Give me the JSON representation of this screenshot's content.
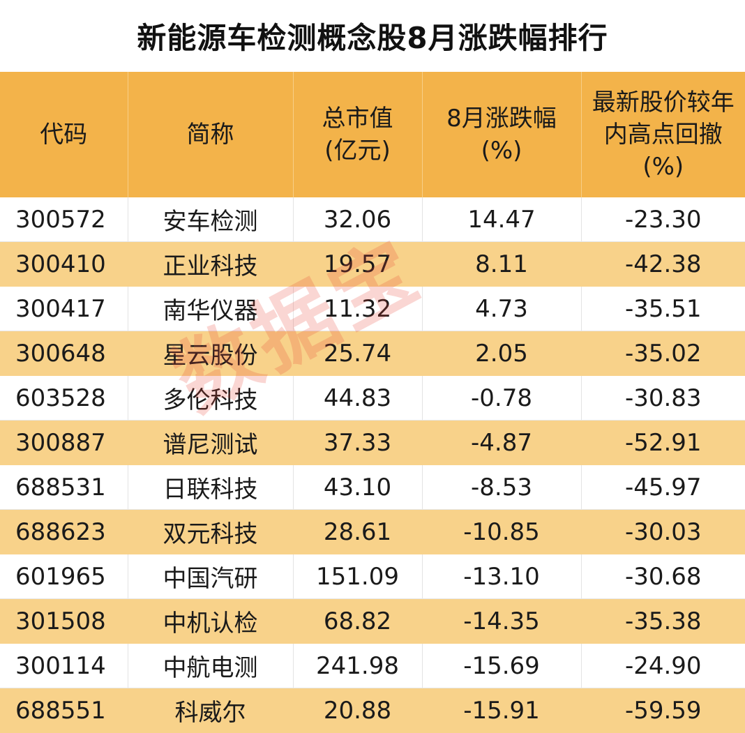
{
  "title": "新能源车检测概念股8月涨跌幅排行",
  "watermark": "数据宝",
  "colors": {
    "header_bg": "#f3b34a",
    "alt_row_bg": "#f8d28a",
    "watermark": "#e84637"
  },
  "table": {
    "headers": [
      [
        "代码"
      ],
      [
        "简称"
      ],
      [
        "总市值",
        "(亿元)"
      ],
      [
        "8月涨跌幅",
        "(%)"
      ],
      [
        "最新股价较年",
        "内高点回撤",
        "(%)"
      ]
    ],
    "rows": [
      [
        "300572",
        "安车检测",
        "32.06",
        "14.47",
        "-23.30"
      ],
      [
        "300410",
        "正业科技",
        "19.57",
        "8.11",
        "-42.38"
      ],
      [
        "300417",
        "南华仪器",
        "11.32",
        "4.73",
        "-35.51"
      ],
      [
        "300648",
        "星云股份",
        "25.74",
        "2.05",
        "-35.02"
      ],
      [
        "603528",
        "多伦科技",
        "44.83",
        "-0.78",
        "-30.83"
      ],
      [
        "300887",
        "谱尼测试",
        "37.33",
        "-4.87",
        "-52.91"
      ],
      [
        "688531",
        "日联科技",
        "43.10",
        "-8.53",
        "-45.97"
      ],
      [
        "688623",
        "双元科技",
        "28.61",
        "-10.85",
        "-30.03"
      ],
      [
        "601965",
        "中国汽研",
        "151.09",
        "-13.10",
        "-30.68"
      ],
      [
        "301508",
        "中机认检",
        "68.82",
        "-14.35",
        "-35.38"
      ],
      [
        "300114",
        "中航电测",
        "241.98",
        "-15.69",
        "-24.90"
      ],
      [
        "688551",
        "科威尔",
        "20.88",
        "-15.91",
        "-59.59"
      ]
    ]
  }
}
